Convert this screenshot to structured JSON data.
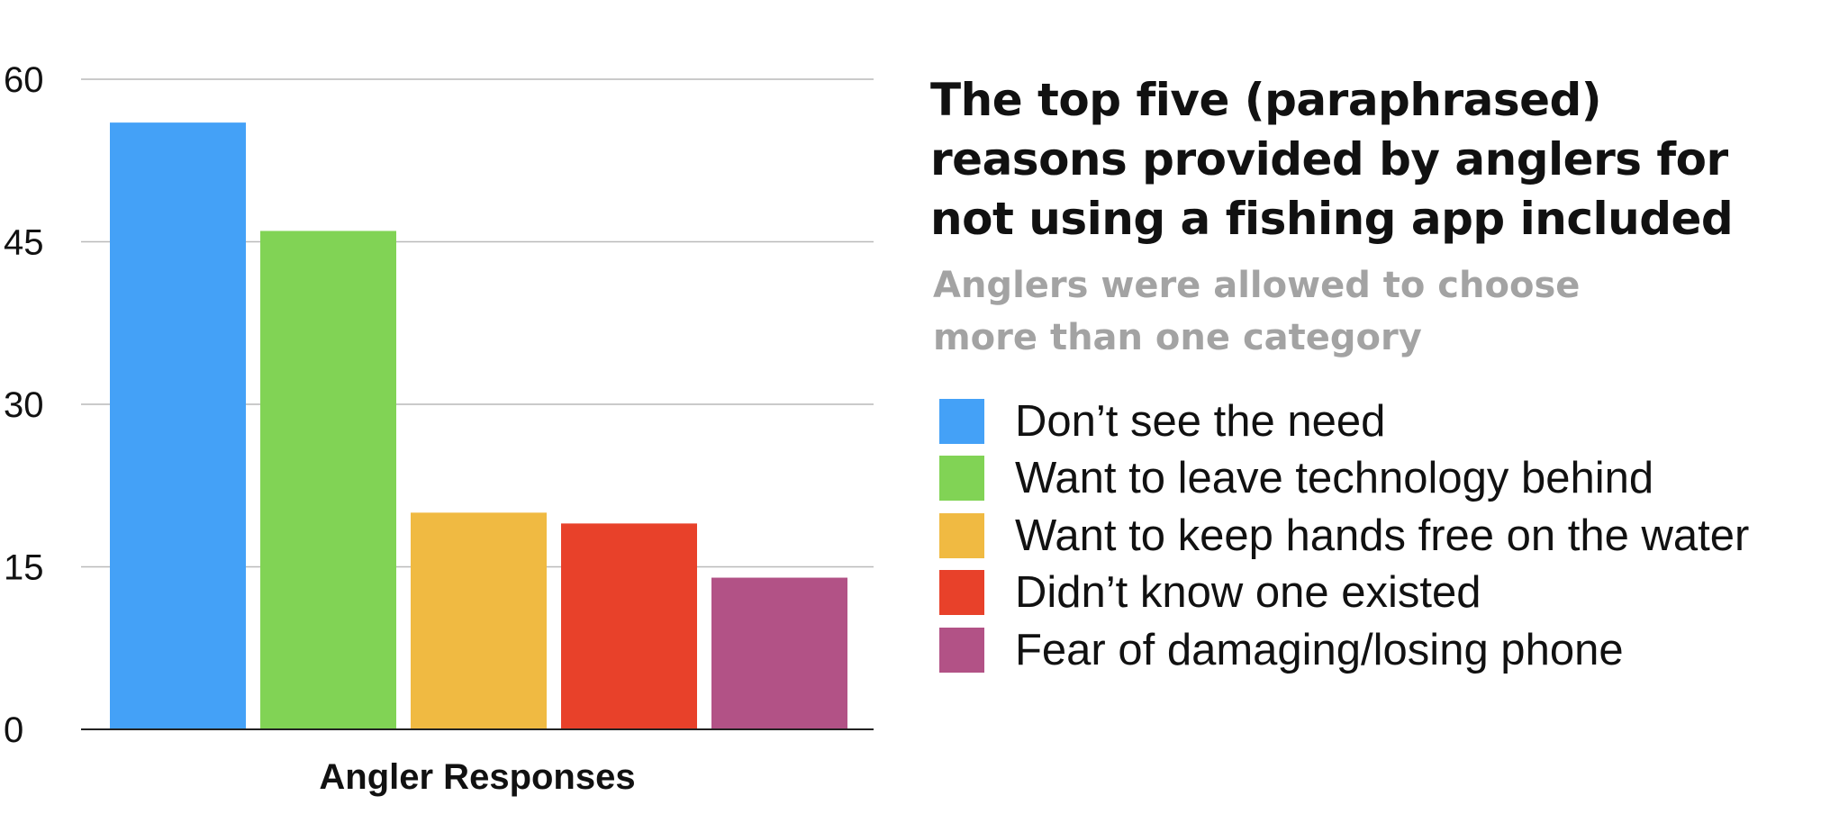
{
  "chart_data": {
    "type": "bar",
    "title": "The top five (paraphrased) reasons provided by anglers for not using a fishing app included",
    "subtitle": "Anglers were allowed to choose more than one category",
    "xlabel": "Angler Responses",
    "ylabel": "",
    "ylim": [
      0,
      60
    ],
    "yticks": [
      0,
      15,
      30,
      45,
      60
    ],
    "grid": true,
    "legend_position": "right",
    "categories": [
      "Don’t see the need",
      "Want to leave technology behind",
      "Want to keep hands free on the water",
      "Didn’t know one existed",
      "Fear of damaging/losing phone"
    ],
    "values": [
      56,
      46,
      20,
      19,
      14
    ],
    "colors": [
      "#44a1f7",
      "#81d355",
      "#f0ba42",
      "#e8412a",
      "#b25286"
    ]
  }
}
